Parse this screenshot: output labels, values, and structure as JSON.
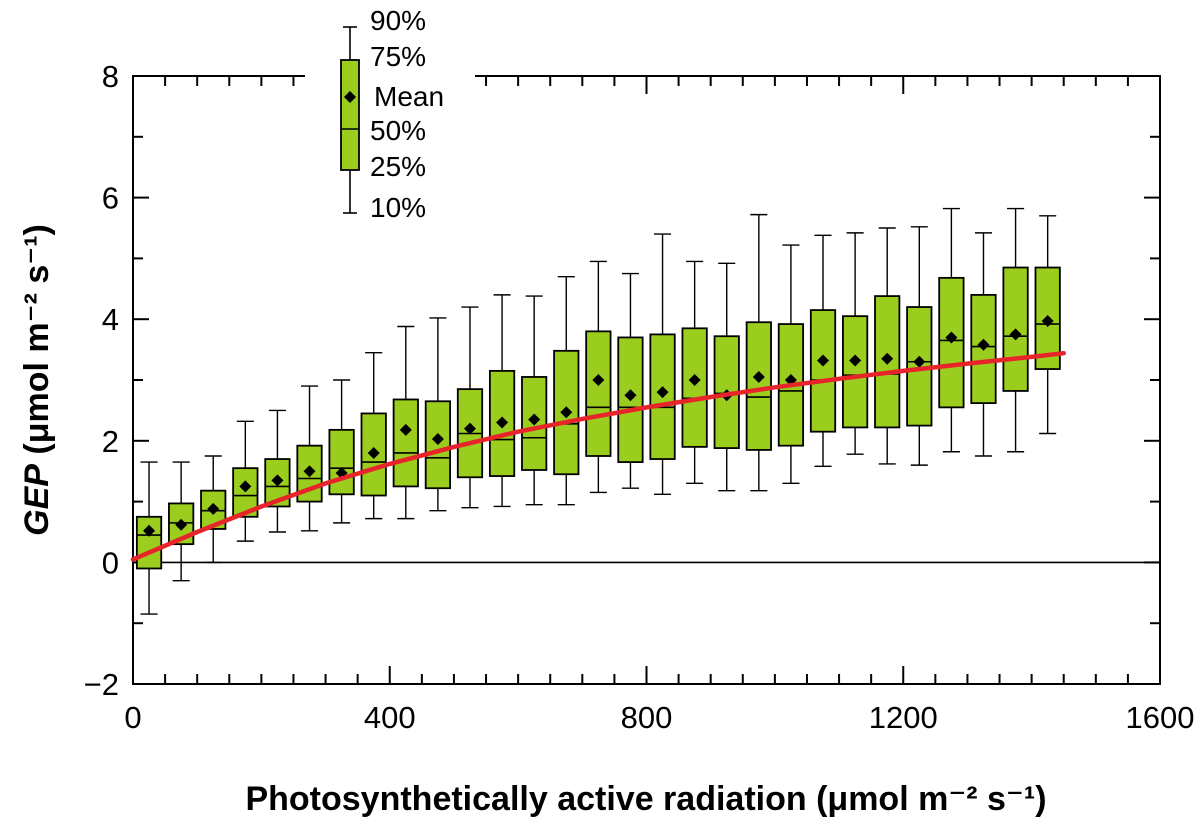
{
  "chart_data": {
    "type": "box",
    "xlabel": "Photosynthetically active radiation (μmol m⁻² s⁻¹)",
    "ylabel_parts": {
      "italic": "GEP",
      "rest": " (μmol m⁻² s⁻¹)"
    },
    "xlim": [
      0,
      1600
    ],
    "ylim": [
      -2,
      8
    ],
    "x_ticks": [
      0,
      400,
      800,
      1200,
      1600
    ],
    "x_tick_labels": [
      "0",
      "400",
      "800",
      "1200",
      "1600"
    ],
    "y_ticks": [
      -2,
      0,
      2,
      4,
      6,
      8
    ],
    "y_tick_labels": [
      "−2",
      "0",
      "2",
      "4",
      "6",
      "8"
    ],
    "zero_line": true,
    "box_color": "#9acd1e",
    "fit_color": "#e8242b",
    "legend": {
      "position": "top-left",
      "labels": [
        "90%",
        "75%",
        "Mean",
        "50%",
        "25%",
        "10%"
      ]
    },
    "boxes": [
      {
        "x": 25,
        "p10": -0.85,
        "p25": -0.1,
        "p50": 0.45,
        "mean": 0.52,
        "p75": 0.75,
        "p90": 1.65
      },
      {
        "x": 75,
        "p10": -0.3,
        "p25": 0.3,
        "p50": 0.65,
        "mean": 0.62,
        "p75": 0.97,
        "p90": 1.65
      },
      {
        "x": 125,
        "p10": 0.0,
        "p25": 0.55,
        "p50": 0.85,
        "mean": 0.88,
        "p75": 1.18,
        "p90": 1.75
      },
      {
        "x": 175,
        "p10": 0.35,
        "p25": 0.75,
        "p50": 1.1,
        "mean": 1.25,
        "p75": 1.55,
        "p90": 2.32
      },
      {
        "x": 225,
        "p10": 0.5,
        "p25": 0.92,
        "p50": 1.25,
        "mean": 1.35,
        "p75": 1.7,
        "p90": 2.5
      },
      {
        "x": 275,
        "p10": 0.52,
        "p25": 1.0,
        "p50": 1.38,
        "mean": 1.5,
        "p75": 1.92,
        "p90": 2.9
      },
      {
        "x": 325,
        "p10": 0.65,
        "p25": 1.12,
        "p50": 1.55,
        "mean": 1.47,
        "p75": 2.18,
        "p90": 3.0
      },
      {
        "x": 375,
        "p10": 0.72,
        "p25": 1.1,
        "p50": 1.65,
        "mean": 1.8,
        "p75": 2.45,
        "p90": 3.45
      },
      {
        "x": 425,
        "p10": 0.72,
        "p25": 1.25,
        "p50": 1.8,
        "mean": 2.18,
        "p75": 2.68,
        "p90": 3.88
      },
      {
        "x": 475,
        "p10": 0.85,
        "p25": 1.22,
        "p50": 1.72,
        "mean": 2.03,
        "p75": 2.65,
        "p90": 4.02
      },
      {
        "x": 525,
        "p10": 0.9,
        "p25": 1.4,
        "p50": 2.12,
        "mean": 2.2,
        "p75": 2.85,
        "p90": 4.2
      },
      {
        "x": 575,
        "p10": 0.92,
        "p25": 1.42,
        "p50": 2.02,
        "mean": 2.3,
        "p75": 3.15,
        "p90": 4.4
      },
      {
        "x": 625,
        "p10": 0.95,
        "p25": 1.52,
        "p50": 2.05,
        "mean": 2.35,
        "p75": 3.05,
        "p90": 4.38
      },
      {
        "x": 675,
        "p10": 0.95,
        "p25": 1.45,
        "p50": 2.28,
        "mean": 2.47,
        "p75": 3.48,
        "p90": 4.7
      },
      {
        "x": 725,
        "p10": 1.15,
        "p25": 1.75,
        "p50": 2.55,
        "mean": 3.0,
        "p75": 3.8,
        "p90": 4.95
      },
      {
        "x": 775,
        "p10": 1.22,
        "p25": 1.65,
        "p50": 2.55,
        "mean": 2.75,
        "p75": 3.7,
        "p90": 4.75
      },
      {
        "x": 825,
        "p10": 1.12,
        "p25": 1.7,
        "p50": 2.55,
        "mean": 2.8,
        "p75": 3.75,
        "p90": 5.4
      },
      {
        "x": 875,
        "p10": 1.3,
        "p25": 1.9,
        "p50": 2.7,
        "mean": 3.0,
        "p75": 3.85,
        "p90": 4.95
      },
      {
        "x": 925,
        "p10": 1.18,
        "p25": 1.88,
        "p50": 2.78,
        "mean": 2.75,
        "p75": 3.72,
        "p90": 4.92
      },
      {
        "x": 975,
        "p10": 1.18,
        "p25": 1.85,
        "p50": 2.72,
        "mean": 3.05,
        "p75": 3.95,
        "p90": 5.72
      },
      {
        "x": 1025,
        "p10": 1.3,
        "p25": 1.92,
        "p50": 2.82,
        "mean": 3.0,
        "p75": 3.92,
        "p90": 5.22
      },
      {
        "x": 1075,
        "p10": 1.58,
        "p25": 2.15,
        "p50": 3.0,
        "mean": 3.32,
        "p75": 4.15,
        "p90": 5.38
      },
      {
        "x": 1125,
        "p10": 1.78,
        "p25": 2.22,
        "p50": 3.08,
        "mean": 3.32,
        "p75": 4.05,
        "p90": 5.42
      },
      {
        "x": 1175,
        "p10": 1.62,
        "p25": 2.22,
        "p50": 3.1,
        "mean": 3.35,
        "p75": 4.38,
        "p90": 5.5
      },
      {
        "x": 1225,
        "p10": 1.6,
        "p25": 2.25,
        "p50": 3.3,
        "mean": 3.3,
        "p75": 4.2,
        "p90": 5.52
      },
      {
        "x": 1275,
        "p10": 1.82,
        "p25": 2.55,
        "p50": 3.65,
        "mean": 3.7,
        "p75": 4.68,
        "p90": 5.82
      },
      {
        "x": 1325,
        "p10": 1.75,
        "p25": 2.62,
        "p50": 3.55,
        "mean": 3.58,
        "p75": 4.4,
        "p90": 5.42
      },
      {
        "x": 1375,
        "p10": 1.82,
        "p25": 2.82,
        "p50": 3.72,
        "mean": 3.75,
        "p75": 4.85,
        "p90": 5.82
      },
      {
        "x": 1425,
        "p10": 2.12,
        "p25": 3.18,
        "p50": 3.92,
        "mean": 3.97,
        "p75": 4.85,
        "p90": 5.7
      }
    ],
    "fit_curve": {
      "x": [
        0,
        100,
        200,
        300,
        400,
        500,
        600,
        700,
        800,
        900,
        1000,
        1100,
        1200,
        1300,
        1400,
        1450
      ],
      "y": [
        0.05,
        0.5,
        0.92,
        1.3,
        1.62,
        1.9,
        2.15,
        2.36,
        2.55,
        2.72,
        2.88,
        3.02,
        3.15,
        3.27,
        3.38,
        3.44
      ]
    }
  }
}
